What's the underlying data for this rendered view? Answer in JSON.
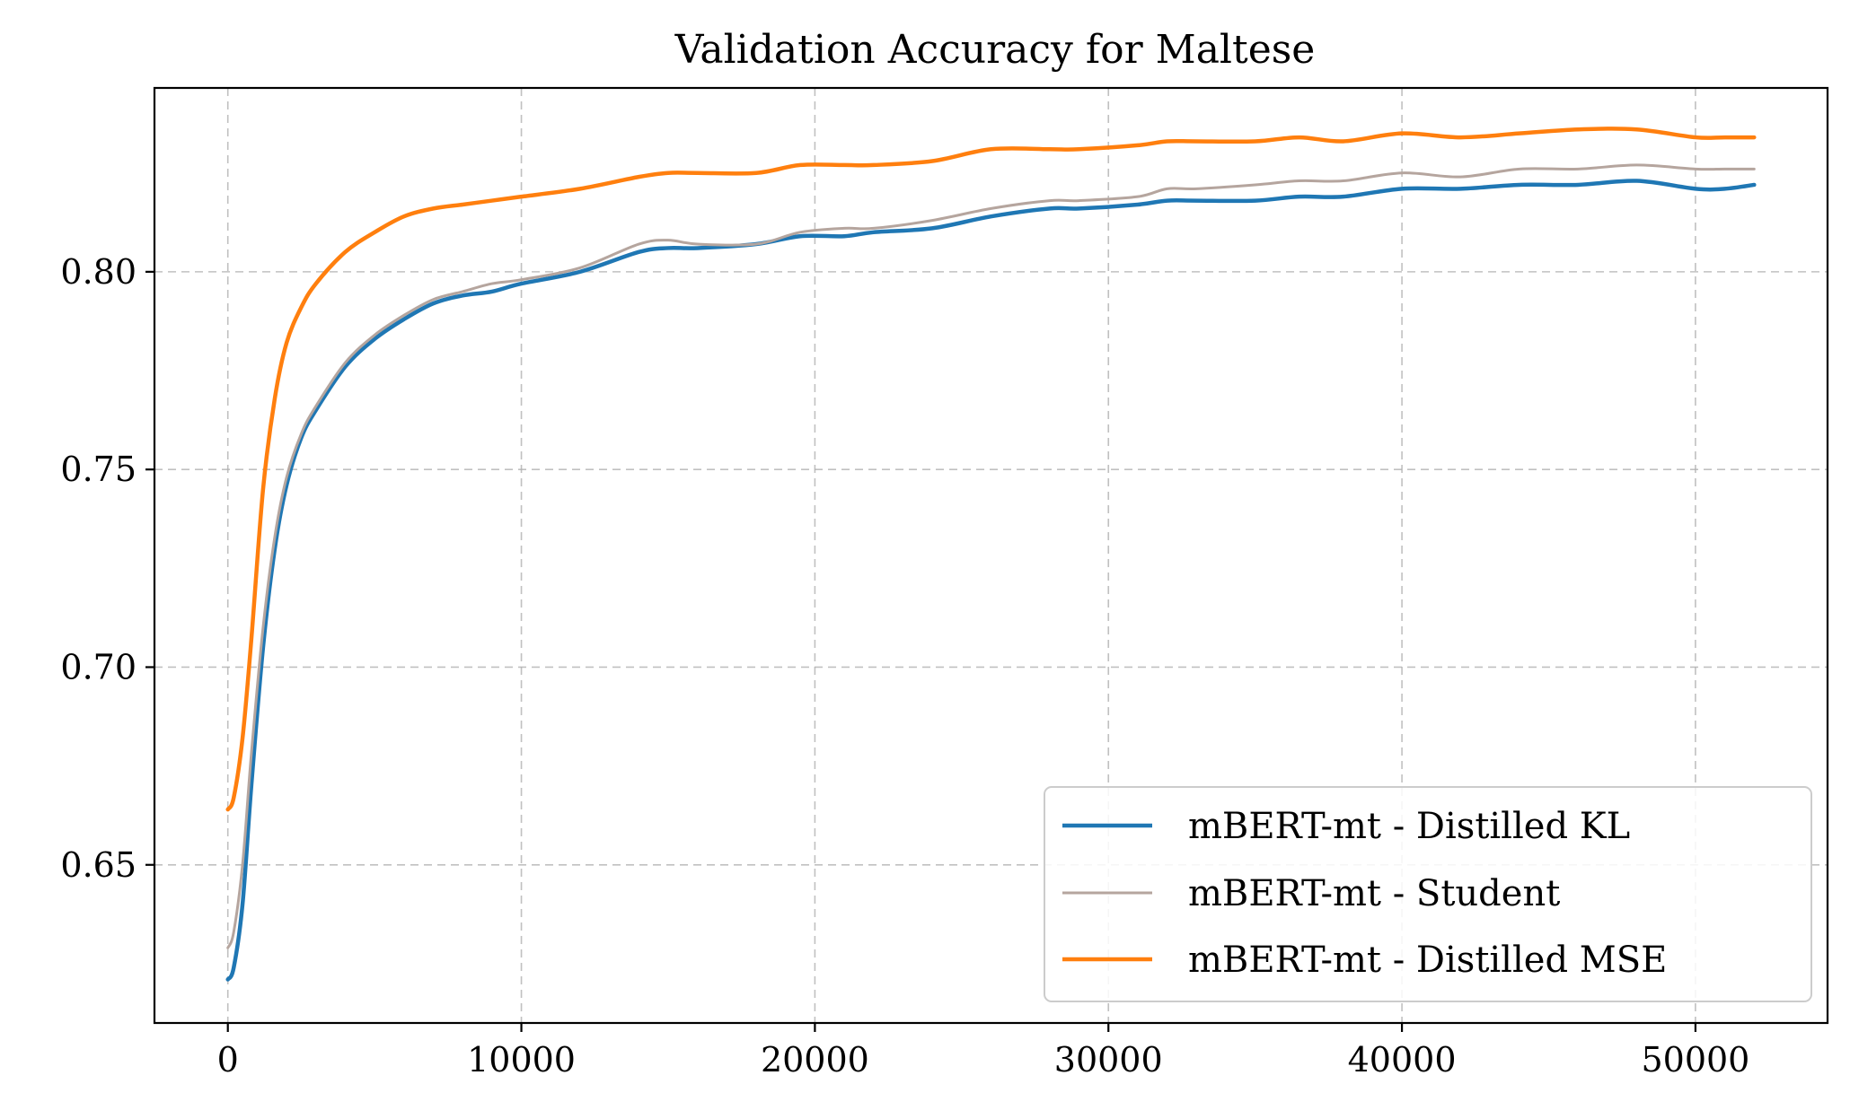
{
  "chart_data": {
    "type": "line",
    "title": "Validation Accuracy for Maltese",
    "xlabel": "",
    "ylabel": "",
    "xlim": [
      -2500,
      54500
    ],
    "ylim": [
      0.61,
      0.8465
    ],
    "grid": true,
    "legend_position": "bottom-right",
    "x_ticks": [
      0,
      10000,
      20000,
      30000,
      40000,
      50000
    ],
    "x_tick_labels": [
      "0",
      "10000",
      "20000",
      "30000",
      "40000",
      "50000"
    ],
    "y_ticks": [
      0.65,
      0.7,
      0.75,
      0.8
    ],
    "y_tick_labels": [
      "0.65",
      "0.70",
      "0.75",
      "0.80"
    ],
    "x": [
      0,
      200,
      500,
      800,
      1200,
      1600,
      2000,
      2500,
      3000,
      4000,
      5000,
      6000,
      7000,
      8000,
      9000,
      10000,
      12000,
      14000,
      15000,
      16000,
      18000,
      19500,
      21000,
      22000,
      24000,
      26000,
      28000,
      29000,
      31000,
      32000,
      33000,
      35000,
      36500,
      38000,
      40000,
      42000,
      44000,
      46000,
      48000,
      50000,
      51000,
      52000
    ],
    "series": [
      {
        "name": "mBERT-mt - Distilled KL",
        "color": "#1f77b4",
        "values": [
          0.621,
          0.624,
          0.64,
          0.67,
          0.705,
          0.73,
          0.746,
          0.758,
          0.765,
          0.776,
          0.783,
          0.788,
          0.792,
          0.794,
          0.795,
          0.797,
          0.8,
          0.805,
          0.806,
          0.806,
          0.807,
          0.809,
          0.809,
          0.81,
          0.811,
          0.814,
          0.816,
          0.816,
          0.817,
          0.818,
          0.818,
          0.818,
          0.819,
          0.819,
          0.821,
          0.821,
          0.822,
          0.822,
          0.823,
          0.821,
          0.821,
          0.822
        ]
      },
      {
        "name": "mBERT-mt - Student",
        "color": "#b5a59e",
        "values": [
          0.629,
          0.633,
          0.65,
          0.678,
          0.71,
          0.733,
          0.748,
          0.759,
          0.766,
          0.777,
          0.784,
          0.789,
          0.793,
          0.795,
          0.797,
          0.798,
          0.801,
          0.807,
          0.808,
          0.807,
          0.807,
          0.81,
          0.811,
          0.811,
          0.813,
          0.816,
          0.818,
          0.818,
          0.819,
          0.821,
          0.821,
          0.822,
          0.823,
          0.823,
          0.825,
          0.824,
          0.826,
          0.826,
          0.827,
          0.826,
          0.826,
          0.826
        ]
      },
      {
        "name": "mBERT-mt - Distilled MSE",
        "color": "#ff7f0e",
        "values": [
          0.664,
          0.667,
          0.682,
          0.707,
          0.745,
          0.768,
          0.782,
          0.791,
          0.797,
          0.805,
          0.81,
          0.814,
          0.816,
          0.817,
          0.818,
          0.819,
          0.821,
          0.824,
          0.825,
          0.825,
          0.825,
          0.827,
          0.827,
          0.827,
          0.828,
          0.831,
          0.831,
          0.831,
          0.832,
          0.833,
          0.833,
          0.833,
          0.834,
          0.833,
          0.835,
          0.834,
          0.835,
          0.836,
          0.836,
          0.834,
          0.834,
          0.834
        ]
      }
    ]
  }
}
